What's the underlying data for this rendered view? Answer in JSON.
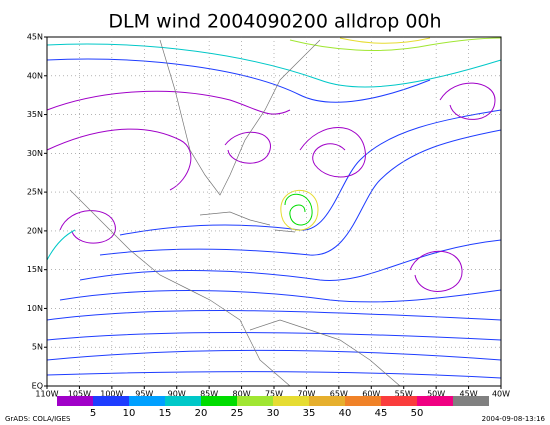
{
  "title": "DLM wind 2004090200 alldrop 00h",
  "lat_labels": [
    "EQ",
    "5N",
    "10N",
    "15N",
    "20N",
    "25N",
    "30N",
    "35N",
    "40N",
    "45N"
  ],
  "lon_labels": [
    "110W",
    "105W",
    "100W",
    "95W",
    "90W",
    "85W",
    "80W",
    "75W",
    "70W",
    "65W",
    "60W",
    "55W",
    "50W",
    "45W",
    "40W"
  ],
  "colorbar": {
    "labels": [
      5,
      10,
      15,
      20,
      25,
      30,
      35,
      40,
      45,
      50
    ],
    "colors": [
      "#a000c8",
      "#1e3cff",
      "#00a0ff",
      "#00c8c8",
      "#00dc00",
      "#a0e632",
      "#e6dc32",
      "#e6af2d",
      "#f08228",
      "#fa3c3c",
      "#f00082",
      "#808080"
    ]
  },
  "footer_left": "GrADS: COLA/IGES",
  "footer_right": "2004-09-08-13:16"
}
